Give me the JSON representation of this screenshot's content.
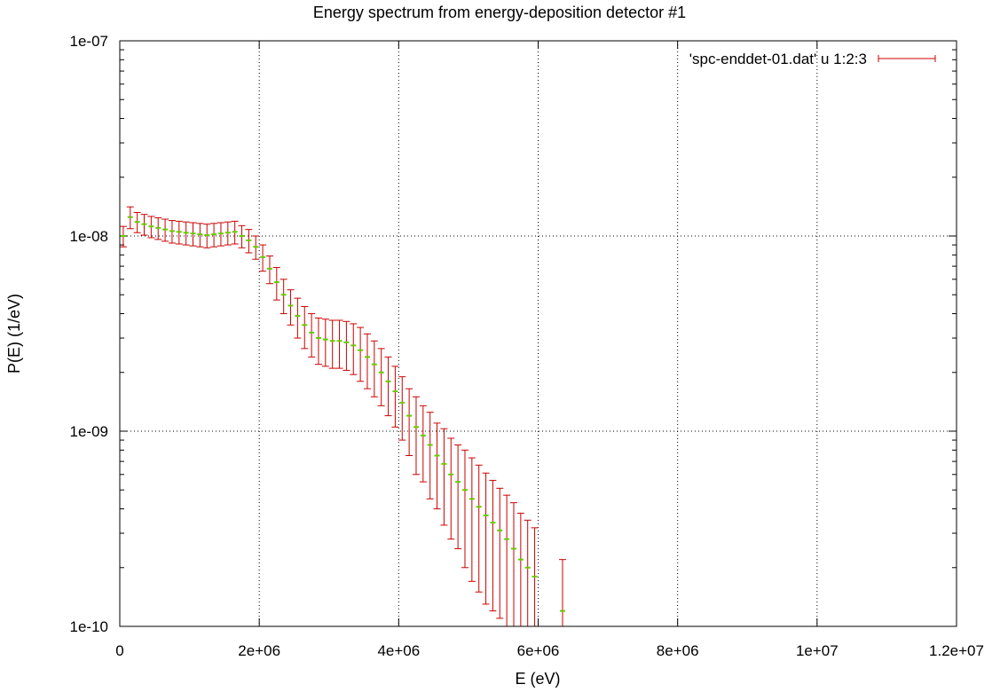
{
  "chart_data": {
    "type": "scatter",
    "title": "Energy spectrum from energy-deposition detector #1",
    "xlabel": "E (eV)",
    "ylabel": "P(E) (1/eV)",
    "xlim": [
      0,
      12000000
    ],
    "ylim": [
      1e-10,
      1e-07
    ],
    "y_scale": "log",
    "grid": true,
    "legend_position": "top-right",
    "x_ticks": [
      0,
      2000000,
      4000000,
      6000000,
      8000000,
      10000000,
      12000000
    ],
    "x_tick_labels": [
      "0",
      "2e+06",
      "4e+06",
      "6e+06",
      "8e+06",
      "1e+07",
      "1.2e+07"
    ],
    "y_ticks": [
      1e-10,
      1e-09,
      1e-08,
      1e-07
    ],
    "y_tick_labels": [
      "1e-10",
      "1e-09",
      "1e-08",
      "1e-07"
    ],
    "colors": {
      "error_bar": "#cc0000",
      "marker": "#66cc00",
      "grid": "#000000"
    },
    "series": [
      {
        "name": "'spc-enddet-01.dat' u 1:2:3",
        "x": [
          50000,
          150000,
          250000,
          350000,
          450000,
          550000,
          650000,
          750000,
          850000,
          950000,
          1050000,
          1150000,
          1250000,
          1350000,
          1450000,
          1550000,
          1650000,
          1750000,
          1850000,
          1950000,
          2050000,
          2150000,
          2250000,
          2350000,
          2450000,
          2550000,
          2650000,
          2750000,
          2850000,
          2950000,
          3050000,
          3150000,
          3250000,
          3350000,
          3450000,
          3550000,
          3650000,
          3750000,
          3850000,
          3950000,
          4050000,
          4150000,
          4250000,
          4350000,
          4450000,
          4550000,
          4650000,
          4750000,
          4850000,
          4950000,
          5050000,
          5150000,
          5250000,
          5350000,
          5450000,
          5550000,
          5650000,
          5750000,
          5850000,
          5950000,
          6350000
        ],
        "y": [
          1e-08,
          1.25e-08,
          1.18e-08,
          1.15e-08,
          1.12e-08,
          1.1e-08,
          1.08e-08,
          1.06e-08,
          1.05e-08,
          1.04e-08,
          1.03e-08,
          1.02e-08,
          1.01e-08,
          1.02e-08,
          1.03e-08,
          1.04e-08,
          1.05e-08,
          1e-08,
          9.5e-09,
          8.8e-09,
          7.8e-09,
          6.8e-09,
          5.8e-09,
          5e-09,
          4.4e-09,
          3.9e-09,
          3.5e-09,
          3.2e-09,
          3e-09,
          2.95e-09,
          2.9e-09,
          2.9e-09,
          2.85e-09,
          2.75e-09,
          2.6e-09,
          2.4e-09,
          2.2e-09,
          2e-09,
          1.8e-09,
          1.6e-09,
          1.4e-09,
          1.2e-09,
          1.05e-09,
          9.5e-10,
          8.5e-10,
          7.5e-10,
          6.8e-10,
          6e-10,
          5.5e-10,
          5e-10,
          4.5e-10,
          4.1e-10,
          3.7e-10,
          3.4e-10,
          3.1e-10,
          2.8e-10,
          2.5e-10,
          2.2e-10,
          2e-10,
          1.8e-10,
          1.2e-10
        ],
        "yerr": [
          1.2e-09,
          1.6e-09,
          1.4e-09,
          1.4e-09,
          1.4e-09,
          1.4e-09,
          1.4e-09,
          1.4e-09,
          1.4e-09,
          1.4e-09,
          1.4e-09,
          1.4e-09,
          1.4e-09,
          1.4e-09,
          1.4e-09,
          1.4e-09,
          1.4e-09,
          1.3e-09,
          1.3e-09,
          1.2e-09,
          1.2e-09,
          1.1e-09,
          1.1e-09,
          1e-09,
          9e-10,
          9e-10,
          8.5e-10,
          8e-10,
          8e-10,
          8e-10,
          8e-10,
          8e-10,
          8e-10,
          8e-10,
          8e-10,
          7.5e-10,
          7e-10,
          6.5e-10,
          6e-10,
          5.5e-10,
          5e-10,
          4.5e-10,
          4.5e-10,
          4e-10,
          4e-10,
          3.5e-10,
          3.5e-10,
          3.2e-10,
          3e-10,
          3e-10,
          2.8e-10,
          2.6e-10,
          2.4e-10,
          2.2e-10,
          2e-10,
          1.9e-10,
          1.8e-10,
          1.6e-10,
          1.5e-10,
          1.4e-10,
          1e-10
        ]
      }
    ]
  }
}
